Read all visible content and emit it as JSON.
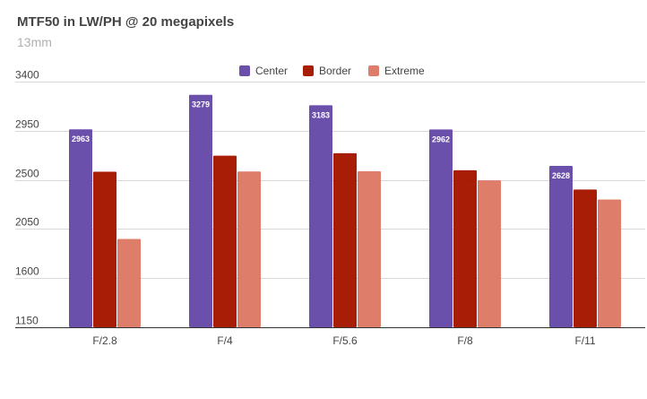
{
  "title": "MTF50 in LW/PH @ 20 megapixels",
  "subtitle": "13mm",
  "chart_data": {
    "type": "bar",
    "categories": [
      "F/2.8",
      "F/4",
      "F/5.6",
      "F/8",
      "F/11"
    ],
    "series": [
      {
        "name": "Center",
        "color": "#6a4fab",
        "label_color": "#ffffff",
        "values": [
          2963,
          3279,
          3183,
          2962,
          2628
        ]
      },
      {
        "name": "Border",
        "color": "#a81d06",
        "label_color": "#a81d06",
        "values": [
          2575,
          2722,
          2744,
          2588,
          2412
        ]
      },
      {
        "name": "Extreme",
        "color": "#df7d6b",
        "label_color": "#df7d6b",
        "values": [
          1959,
          2577,
          2579,
          2496,
          2320
        ]
      }
    ],
    "ylim": [
      1150,
      3400
    ],
    "yticks": [
      1150,
      1600,
      2050,
      2500,
      2950,
      3400
    ],
    "grid": true,
    "legend": "top-center"
  }
}
